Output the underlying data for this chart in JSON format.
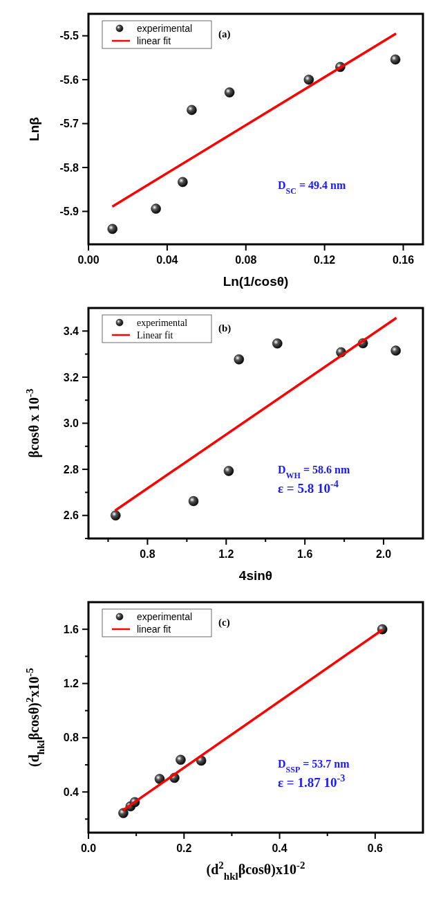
{
  "chart_data": [
    {
      "type": "scatter",
      "title": "(a)",
      "xlabel": "Ln(1/cosθ)",
      "ylabel": "Lnβ",
      "xlim": [
        0,
        0.17
      ],
      "ylim": [
        -5.975,
        -5.45
      ],
      "xticks": [
        {
          "value": 0,
          "label": "0.00"
        },
        0.04,
        0.08,
        0.12,
        0.16
      ],
      "yticks": [
        -5.9,
        -5.8,
        -5.7,
        -5.6,
        -5.5
      ],
      "legend": "top left",
      "annotations": [
        "D$_{SC}$ = 49.4 nm"
      ],
      "series": [
        {
          "name": "experimental",
          "marker": "circle",
          "color": "#000000",
          "x": [
            0.0122,
            0.0343,
            0.0479,
            0.0525,
            0.0717,
            0.112,
            0.128,
            0.156
          ],
          "values": [
            -5.94,
            -5.894,
            -5.833,
            -5.669,
            -5.629,
            -5.6,
            -5.571,
            -5.554
          ]
        },
        {
          "name": "linear fit",
          "type": "line",
          "color": "#ff0000",
          "x": [
            0.0121,
            0.1563
          ],
          "values": [
            -5.889,
            -5.495
          ]
        }
      ]
    },
    {
      "type": "scatter",
      "title": "(b)",
      "xlabel": "4sinθ",
      "ylabel": "βcosθ x 10$^{-3}$",
      "xlim": [
        0.5,
        2.2
      ],
      "ylim": [
        2.5,
        3.5
      ],
      "xticks": [
        {
          "value": 0.6,
          "label": null
        },
        0.8,
        {
          "value": 1.0,
          "label": null
        },
        1.2,
        {
          "value": 1.4,
          "label": null
        },
        1.6,
        {
          "value": 1.8,
          "label": null
        },
        {
          "value": 2.0,
          "label": "2.0"
        }
      ],
      "yticks": [
        {
          "value": 2.5,
          "label": null
        },
        2.6,
        {
          "value": 2.7,
          "label": null
        },
        2.8,
        {
          "value": 2.9,
          "label": null
        },
        {
          "value": 3.0,
          "label": "3.0"
        },
        {
          "value": 3.1,
          "label": null
        },
        3.2,
        {
          "value": 3.3,
          "label": null
        },
        3.4
      ],
      "legend": "top left",
      "annotations": [
        "D$_{WH}$ = 58.6 nm",
        "ε = 5.8 10$^{-4}$"
      ],
      "series": [
        {
          "name": "experimental",
          "marker": "circle",
          "color": "#000000",
          "x": [
            0.638,
            1.034,
            1.213,
            1.265,
            1.46,
            1.784,
            1.895,
            2.062
          ],
          "values": [
            2.6,
            2.662,
            2.793,
            3.277,
            3.346,
            3.308,
            3.347,
            3.315
          ]
        },
        {
          "name": "Linear fit",
          "type": "line",
          "color": "#ff0000",
          "x": [
            0.635,
            2.065
          ],
          "values": [
            2.621,
            3.457
          ]
        }
      ]
    },
    {
      "type": "scatter",
      "title": "(c)",
      "xlabel": "(d$^{2}$$_{hkl}$βcosθ)x10$^{-2}$",
      "ylabel": "(d$_{hkl}$βcosθ)$^{2}$x10$^{-5}$",
      "xlim": [
        0,
        0.7
      ],
      "ylim": [
        0.1,
        1.8
      ],
      "xticks": [
        {
          "value": 0,
          "label": "0.0"
        },
        {
          "value": 0.1,
          "label": null
        },
        0.2,
        {
          "value": 0.3,
          "label": null
        },
        0.4,
        {
          "value": 0.5,
          "label": null
        },
        0.6
      ],
      "yticks": [
        {
          "value": 0.2,
          "label": null
        },
        0.4,
        {
          "value": 0.6,
          "label": null
        },
        0.8,
        {
          "value": 1.0,
          "label": null
        },
        1.2,
        {
          "value": 1.4,
          "label": null
        },
        1.6
      ],
      "legend": "top left",
      "annotations": [
        "D$_{SSP}$ = 53.7 nm",
        "ε = 1.87 10$^{-3}$"
      ],
      "series": [
        {
          "name": "experimental",
          "marker": "circle",
          "color": "#000000",
          "x": [
            0.073,
            0.088,
            0.097,
            0.149,
            0.18,
            0.193,
            0.236,
            0.615
          ],
          "values": [
            0.244,
            0.294,
            0.325,
            0.496,
            0.504,
            0.637,
            0.631,
            1.6
          ]
        },
        {
          "name": "linear fit",
          "type": "line",
          "color": "#ff0000",
          "x": [
            0.071,
            0.615
          ],
          "values": [
            0.263,
            1.596
          ]
        }
      ]
    }
  ]
}
